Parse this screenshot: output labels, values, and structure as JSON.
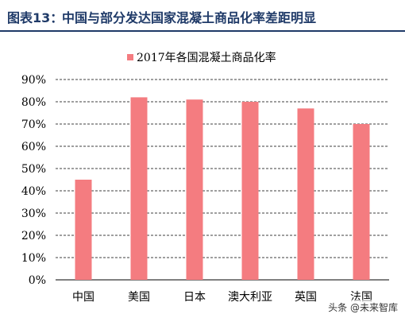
{
  "header": {
    "figure_number": "图表13：",
    "figure_title": "中国与部分发达国家混凝土商品化率差距明显"
  },
  "watermark": {
    "text": "头条 @未来智库"
  },
  "colors": {
    "accent": "#1f3a68",
    "bar": "#f47c80",
    "grid": "#000000"
  },
  "chart_data": {
    "type": "bar",
    "title": "",
    "xlabel": "",
    "ylabel": "",
    "categories": [
      "中国",
      "美国",
      "日本",
      "澳大利亚",
      "英国",
      "法国"
    ],
    "series": [
      {
        "name": "2017年各国混凝土商品化率",
        "values": [
          45,
          82,
          81,
          80,
          77,
          70
        ]
      }
    ],
    "yticks": [
      "0%",
      "10%",
      "20%",
      "30%",
      "40%",
      "50%",
      "60%",
      "70%",
      "80%",
      "90%"
    ],
    "ylim": [
      0,
      90
    ],
    "grid": true,
    "legend": "top"
  }
}
